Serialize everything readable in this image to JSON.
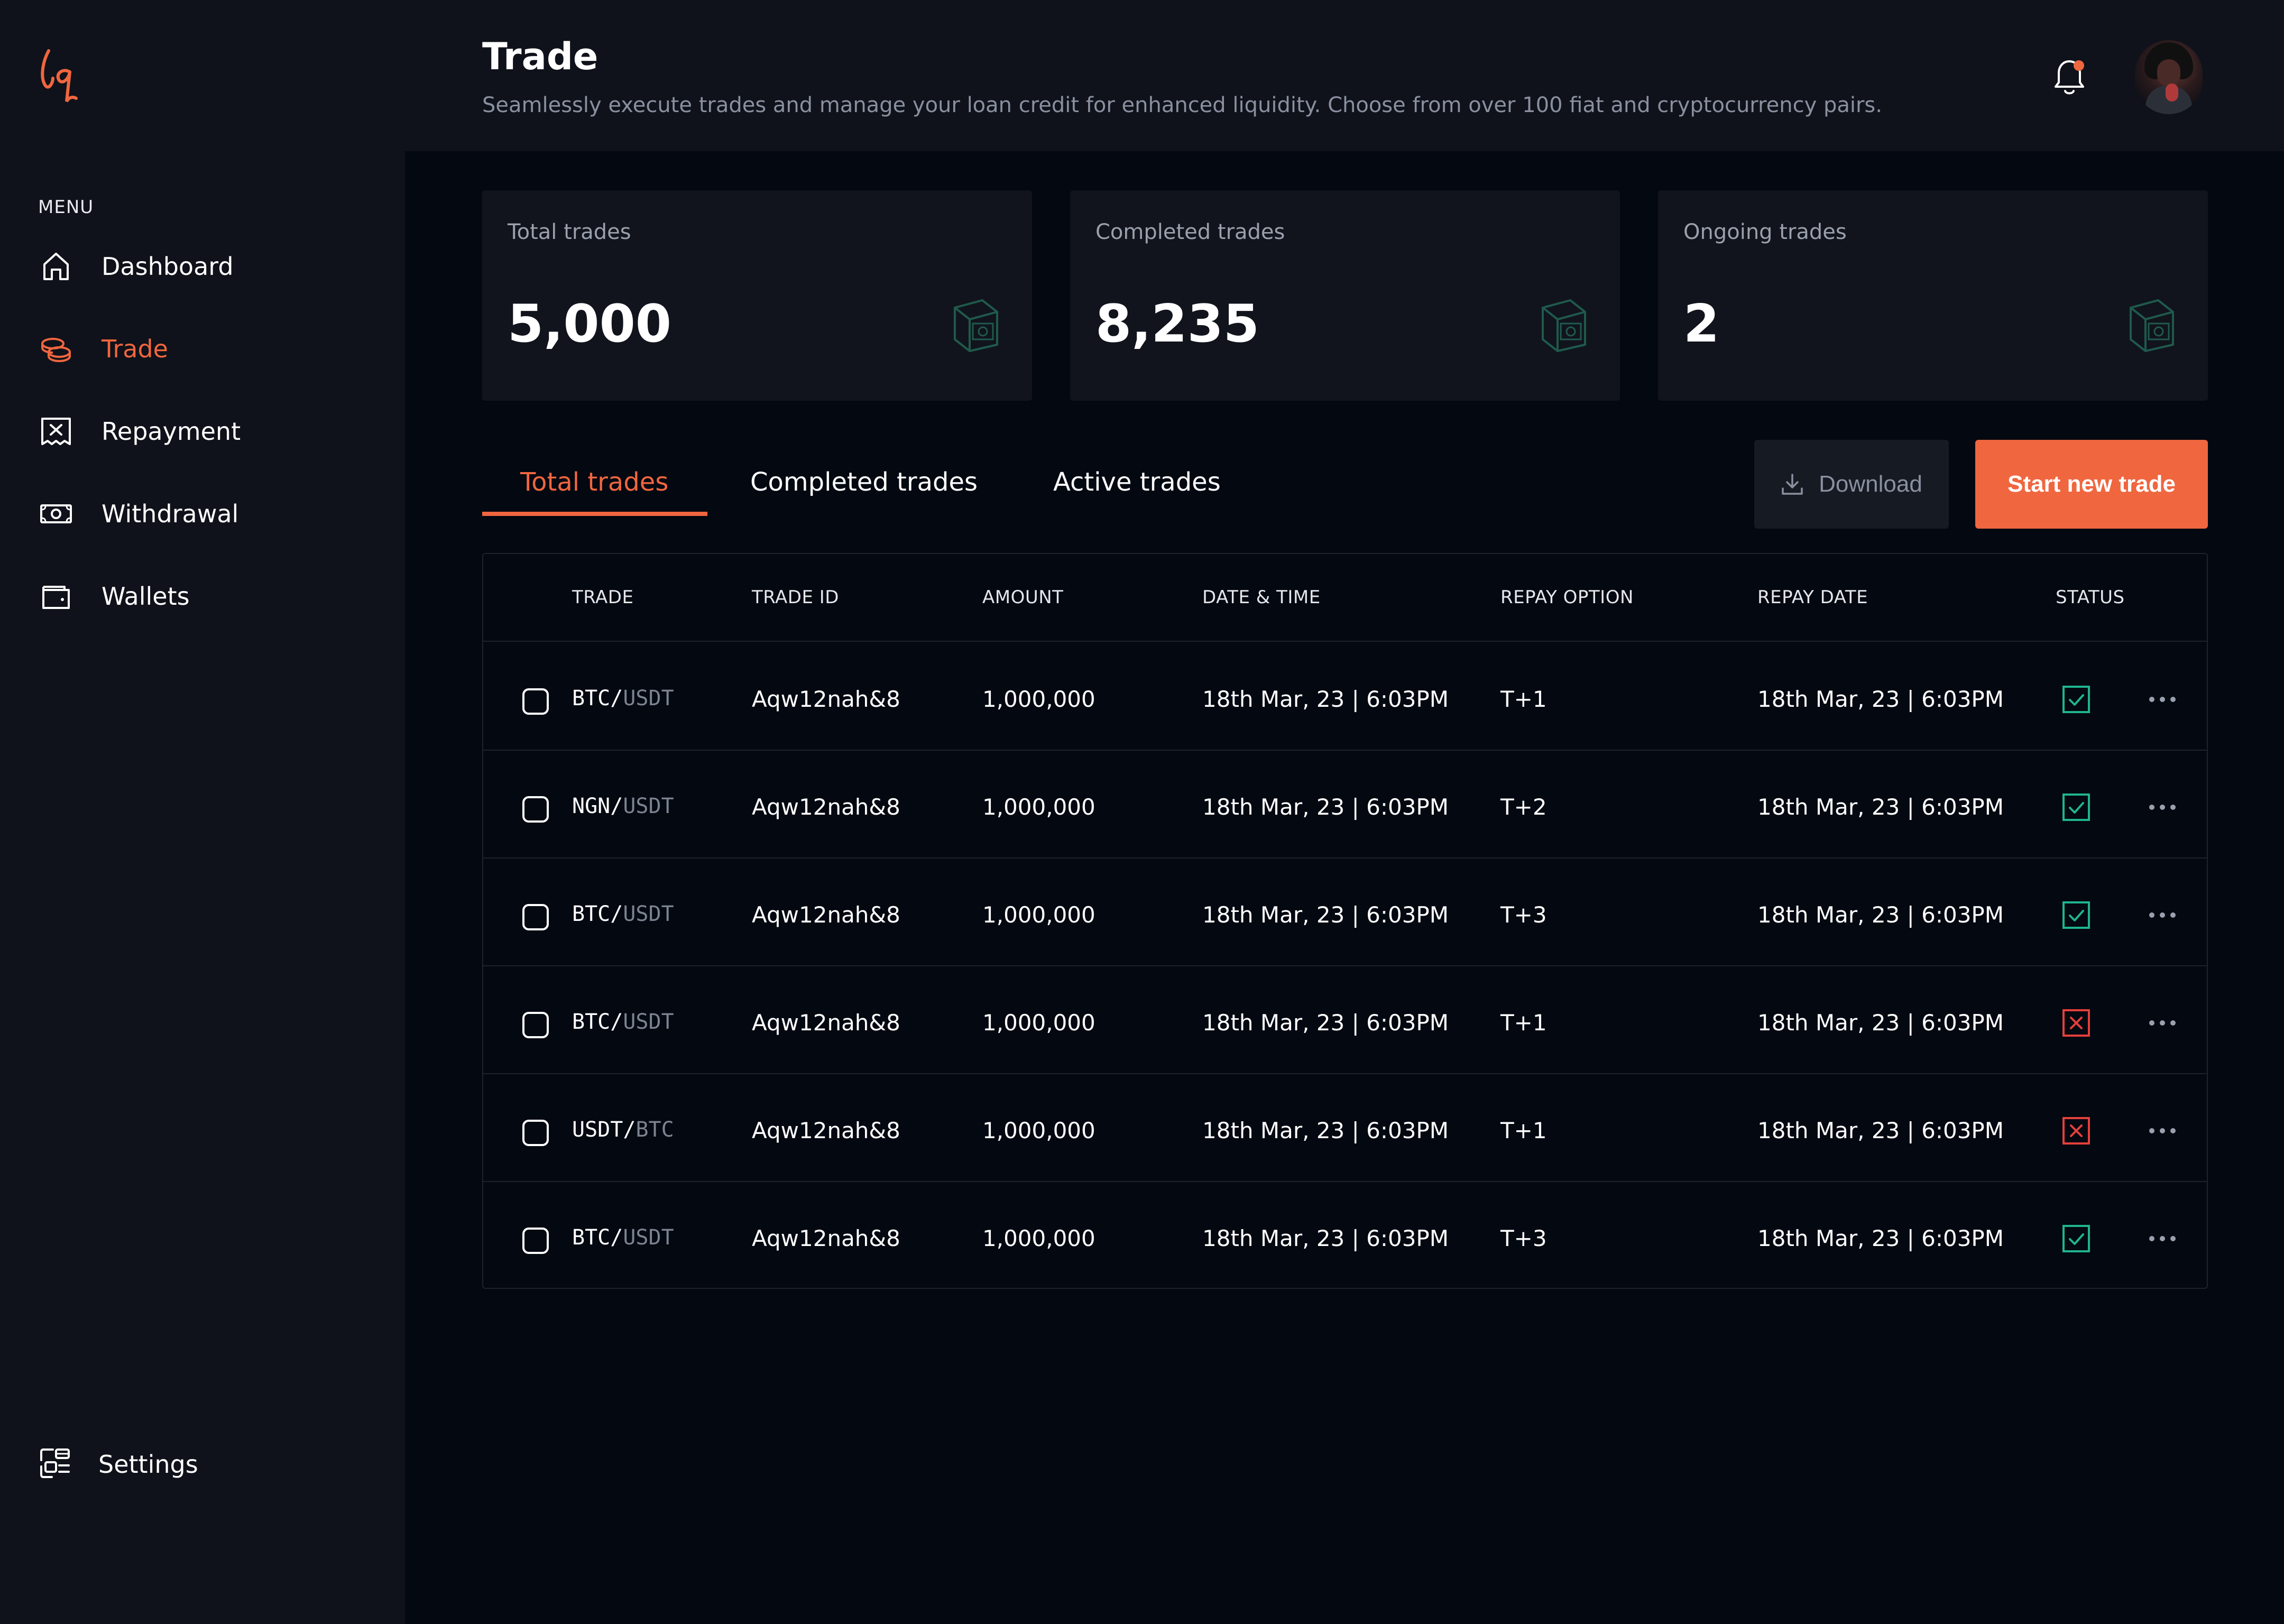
{
  "header": {
    "title": "Trade",
    "subtitle": "Seamlessly execute trades and manage your loan credit for enhanced liquidity. Choose from over 100 fiat and cryptocurrency pairs."
  },
  "sidebar": {
    "menu_label": "MENU",
    "items": [
      {
        "label": "Dashboard",
        "icon": "home-icon"
      },
      {
        "label": "Trade",
        "icon": "coins-icon",
        "active": true
      },
      {
        "label": "Repayment",
        "icon": "receipt-x-icon"
      },
      {
        "label": "Withdrawal",
        "icon": "money-icon"
      },
      {
        "label": "Wallets",
        "icon": "wallet-icon"
      }
    ],
    "settings_label": "Settings"
  },
  "stats": [
    {
      "label": "Total trades",
      "value": "5,000"
    },
    {
      "label": "Completed trades",
      "value": "8,235"
    },
    {
      "label": "Ongoing trades",
      "value": "2"
    }
  ],
  "tabs": [
    {
      "label": "Total trades",
      "active": true
    },
    {
      "label": "Completed trades"
    },
    {
      "label": "Active trades"
    }
  ],
  "actions": {
    "download_label": "Download",
    "start_label": "Start new trade"
  },
  "table": {
    "columns": [
      "TRADE",
      "TRADE ID",
      "AMOUNT",
      "DATE & TIME",
      "REPAY OPTION",
      "REPAY DATE",
      "STATUS"
    ],
    "rows": [
      {
        "base": "BTC/",
        "quote": "USDT",
        "id": "Aqw12nah&8",
        "amount": "1,000,000",
        "datetime": "18th Mar, 23 | 6:03PM",
        "repay_option": "T+1",
        "repay_date": "18th Mar, 23 | 6:03PM",
        "status": "success"
      },
      {
        "base": "NGN/",
        "quote": "USDT",
        "id": "Aqw12nah&8",
        "amount": "1,000,000",
        "datetime": "18th Mar, 23 | 6:03PM",
        "repay_option": "T+2",
        "repay_date": "18th Mar, 23 | 6:03PM",
        "status": "success"
      },
      {
        "base": "BTC/",
        "quote": "USDT",
        "id": "Aqw12nah&8",
        "amount": "1,000,000",
        "datetime": "18th Mar, 23 | 6:03PM",
        "repay_option": "T+3",
        "repay_date": "18th Mar, 23 | 6:03PM",
        "status": "success"
      },
      {
        "base": "BTC/",
        "quote": "USDT",
        "id": "Aqw12nah&8",
        "amount": "1,000,000",
        "datetime": "18th Mar, 23 | 6:03PM",
        "repay_option": "T+1",
        "repay_date": "18th Mar, 23 | 6:03PM",
        "status": "failed"
      },
      {
        "base": "USDT/",
        "quote": "BTC",
        "id": "Aqw12nah&8",
        "amount": "1,000,000",
        "datetime": "18th Mar, 23 | 6:03PM",
        "repay_option": "T+1",
        "repay_date": "18th Mar, 23 | 6:03PM",
        "status": "failed"
      },
      {
        "base": "BTC/",
        "quote": "USDT",
        "id": "Aqw12nah&8",
        "amount": "1,000,000",
        "datetime": "18th Mar, 23 | 6:03PM",
        "repay_option": "T+3",
        "repay_date": "18th Mar, 23 | 6:03PM",
        "status": "success"
      }
    ]
  },
  "colors": {
    "accent": "#f0663f",
    "success": "#1fb58f",
    "danger": "#e5403a",
    "background": "#030811",
    "panel": "#0f121a"
  }
}
